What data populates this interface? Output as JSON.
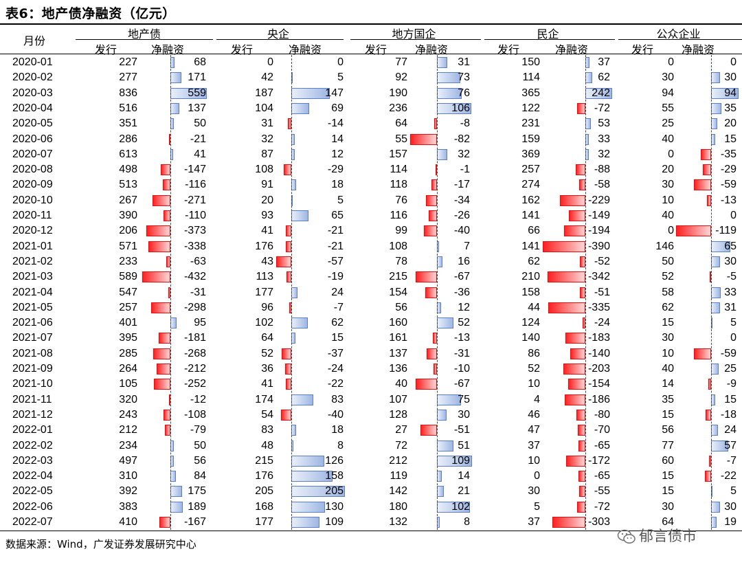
{
  "title": "表6：地产债净融资（亿元）",
  "header": {
    "month_label": "月份",
    "groups": [
      "地产债",
      "央企",
      "地方国企",
      "民企",
      "公众企业"
    ],
    "issue_label": "发行",
    "net_label": "净融资"
  },
  "source": "数据来源：Wind，广发证券发展研究中心",
  "watermark": "郁言债市",
  "colors": {
    "positive": "#9fb6e2",
    "negative": "#ff2020"
  },
  "chart_data": {
    "type": "table",
    "columns": [
      "月份",
      "地产债发行",
      "地产债净融资",
      "央企发行",
      "央企净融资",
      "地方国企发行",
      "地方国企净融资",
      "民企发行",
      "民企净融资",
      "公众企业发行",
      "公众企业净融资"
    ],
    "rows": [
      [
        "2020-01",
        227,
        68,
        0,
        0,
        77,
        31,
        150,
        37,
        0,
        0
      ],
      [
        "2020-02",
        277,
        171,
        42,
        5,
        92,
        73,
        114,
        62,
        30,
        30
      ],
      [
        "2020-03",
        836,
        559,
        187,
        147,
        190,
        76,
        365,
        242,
        94,
        94
      ],
      [
        "2020-04",
        516,
        137,
        104,
        69,
        236,
        106,
        122,
        -72,
        55,
        35
      ],
      [
        "2020-05",
        351,
        50,
        31,
        -14,
        64,
        -8,
        231,
        53,
        25,
        20
      ],
      [
        "2020-06",
        286,
        -21,
        32,
        14,
        55,
        -82,
        159,
        33,
        40,
        15
      ],
      [
        "2020-07",
        613,
        41,
        87,
        12,
        157,
        32,
        369,
        32,
        0,
        -35
      ],
      [
        "2020-08",
        498,
        -147,
        108,
        -29,
        114,
        -1,
        257,
        -88,
        20,
        -29
      ],
      [
        "2020-09",
        513,
        -116,
        91,
        18,
        118,
        -17,
        274,
        -58,
        30,
        -59
      ],
      [
        "2020-10",
        267,
        -271,
        20,
        5,
        76,
        -34,
        162,
        -229,
        10,
        -13
      ],
      [
        "2020-11",
        390,
        -110,
        93,
        65,
        116,
        -26,
        141,
        -149,
        40,
        0
      ],
      [
        "2020-12",
        206,
        -373,
        41,
        -21,
        99,
        -40,
        66,
        -194,
        0,
        -119
      ],
      [
        "2021-01",
        571,
        -338,
        176,
        -21,
        108,
        7,
        141,
        -390,
        146,
        65
      ],
      [
        "2021-02",
        233,
        -63,
        43,
        -57,
        78,
        16,
        62,
        -52,
        50,
        30
      ],
      [
        "2021-03",
        589,
        -432,
        113,
        -19,
        215,
        -67,
        210,
        -342,
        52,
        -5
      ],
      [
        "2021-04",
        547,
        -31,
        177,
        24,
        154,
        -36,
        158,
        -51,
        58,
        33
      ],
      [
        "2021-05",
        257,
        -298,
        96,
        -7,
        56,
        12,
        44,
        -335,
        62,
        31
      ],
      [
        "2021-06",
        401,
        95,
        102,
        62,
        160,
        52,
        124,
        -24,
        15,
        5
      ],
      [
        "2021-07",
        395,
        -181,
        64,
        15,
        161,
        -13,
        140,
        -183,
        30,
        0
      ],
      [
        "2021-08",
        285,
        -268,
        52,
        -37,
        137,
        -31,
        86,
        -140,
        10,
        -59
      ],
      [
        "2021-09",
        264,
        -212,
        36,
        -24,
        136,
        -10,
        52,
        -203,
        40,
        25
      ],
      [
        "2021-10",
        105,
        -252,
        41,
        -22,
        40,
        -67,
        10,
        -154,
        14,
        -9
      ],
      [
        "2021-11",
        320,
        -12,
        174,
        83,
        107,
        75,
        4,
        -186,
        35,
        15
      ],
      [
        "2021-12",
        243,
        -108,
        54,
        -40,
        128,
        30,
        46,
        -80,
        15,
        -18
      ],
      [
        "2022-01",
        212,
        -79,
        83,
        18,
        27,
        -51,
        47,
        -70,
        56,
        24
      ],
      [
        "2022-02",
        234,
        50,
        48,
        8,
        72,
        51,
        37,
        -65,
        77,
        57
      ],
      [
        "2022-03",
        497,
        56,
        215,
        126,
        212,
        109,
        10,
        -172,
        60,
        -7
      ],
      [
        "2022-04",
        310,
        84,
        176,
        158,
        119,
        14,
        0,
        -65,
        15,
        -22
      ],
      [
        "2022-05",
        392,
        175,
        205,
        205,
        142,
        21,
        30,
        -55,
        15,
        5
      ],
      [
        "2022-06",
        383,
        189,
        168,
        130,
        180,
        102,
        5,
        -72,
        30,
        30
      ],
      [
        "2022-07",
        410,
        -167,
        177,
        109,
        132,
        8,
        37,
        -303,
        64,
        19
      ]
    ]
  }
}
